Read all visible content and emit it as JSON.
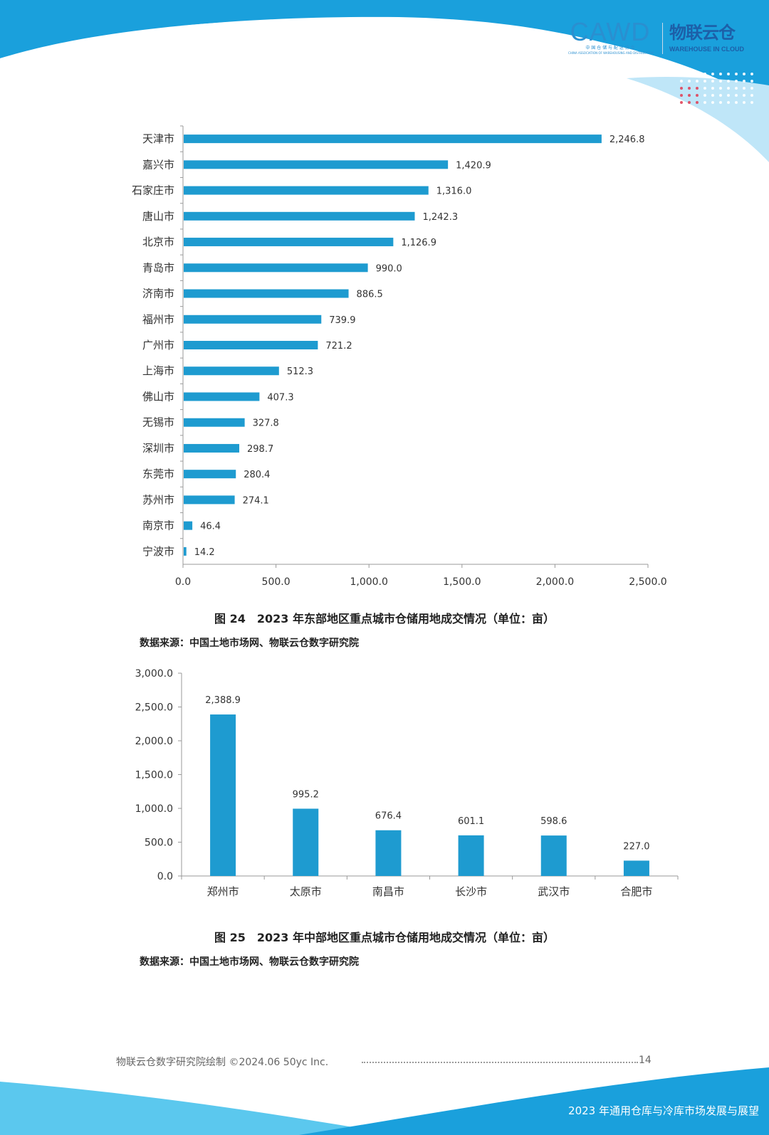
{
  "header": {
    "cawd_logo": "CAWD",
    "cawd_subtitle_cn": "中 国 仓 储 与 配 送 协 会",
    "cawd_subtitle_en": "CHINA ASSOCIATION OF WAREHOUSING AND DISTRIBUTION",
    "wic_logo_cn": "物联云仓",
    "wic_logo_en": "WAREHOUSE IN CLOUD"
  },
  "colors": {
    "bar": "#1e9bd0",
    "brand_blue": "#1aa0dc",
    "light_blue": "#5bc8ee"
  },
  "chart_data": [
    {
      "type": "bar",
      "orientation": "horizontal",
      "categories": [
        "天津市",
        "嘉兴市",
        "石家庄市",
        "唐山市",
        "北京市",
        "青岛市",
        "济南市",
        "福州市",
        "广州市",
        "上海市",
        "佛山市",
        "无锡市",
        "深圳市",
        "东莞市",
        "苏州市",
        "南京市",
        "宁波市"
      ],
      "values": [
        2246.8,
        1420.9,
        1316.0,
        1242.3,
        1126.9,
        990.0,
        886.5,
        739.9,
        721.2,
        512.3,
        407.3,
        327.8,
        298.7,
        280.4,
        274.1,
        46.4,
        14.2
      ],
      "value_labels": [
        "2,246.8",
        "1,420.9",
        "1,316.0",
        "1,242.3",
        "1,126.9",
        "990.0",
        "886.5",
        "739.9",
        "721.2",
        "512.3",
        "407.3",
        "327.8",
        "298.7",
        "280.4",
        "274.1",
        "46.4",
        "14.2"
      ],
      "xlim": [
        0,
        2500
      ],
      "xticks": [
        0,
        500,
        1000,
        1500,
        2000,
        2500
      ],
      "xtick_labels": [
        "0.0",
        "500.0",
        "1,000.0",
        "1,500.0",
        "2,000.0",
        "2,500.0"
      ],
      "grid": false,
      "caption": "图 24　2023 年东部地区重点城市仓储用地成交情况（单位：亩）",
      "source": "数据来源：中国土地市场网、物联云仓数字研究院"
    },
    {
      "type": "bar",
      "orientation": "vertical",
      "categories": [
        "郑州市",
        "太原市",
        "南昌市",
        "长沙市",
        "武汉市",
        "合肥市"
      ],
      "values": [
        2388.9,
        995.2,
        676.4,
        601.1,
        598.6,
        227.0
      ],
      "value_labels": [
        "2,388.9",
        "995.2",
        "676.4",
        "601.1",
        "598.6",
        "227.0"
      ],
      "ylim": [
        0,
        3000
      ],
      "yticks": [
        0,
        500,
        1000,
        1500,
        2000,
        2500,
        3000
      ],
      "ytick_labels": [
        "0.0",
        "500.0",
        "1,000.0",
        "1,500.0",
        "2,000.0",
        "2,500.0",
        "3,000.0"
      ],
      "grid": false,
      "caption": "图 25　2023 年中部地区重点城市仓储用地成交情况（单位：亩）",
      "source": "数据来源：中国土地市场网、物联云仓数字研究院"
    }
  ],
  "footer": {
    "credit": "物联云仓数字研究院绘制  ©2024.06 50yc Inc.",
    "page_number": "14",
    "report_title": "2023 年通用仓库与冷库市场发展与展望"
  }
}
